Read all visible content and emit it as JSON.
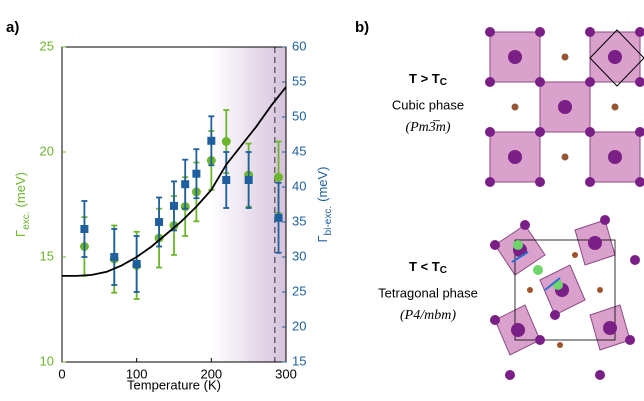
{
  "chart_data": {
    "type": "scatter",
    "panel_label": "a)",
    "xlabel": "Temperature (K)",
    "ylabel": [
      "Γ",
      "exc.",
      "(meV)"
    ],
    "y2label": [
      "Γ",
      "bi-exc.",
      "(meV)"
    ],
    "xlim": [
      0,
      300
    ],
    "xticks": [
      0,
      100,
      200,
      300
    ],
    "ylim": [
      10,
      25
    ],
    "yticks": [
      10,
      15,
      20,
      25
    ],
    "y2lim": [
      15,
      60
    ],
    "y2ticks": [
      15,
      20,
      25,
      30,
      35,
      40,
      45,
      50,
      55,
      60
    ],
    "vline": 285,
    "series": [
      {
        "marker": "circle",
        "color": "#6cb52d",
        "x": [
          30,
          70,
          100,
          130,
          150,
          165,
          180,
          200,
          220,
          250,
          290
        ],
        "values": [
          15.5,
          14.9,
          14.6,
          15.9,
          16.5,
          17.4,
          18.1,
          19.6,
          20.5,
          18.9,
          18.8
        ],
        "errors": [
          1.4,
          1.6,
          1.6,
          1.4,
          1.4,
          1.4,
          1.4,
          1.4,
          1.5,
          1.5,
          1.7
        ]
      },
      {
        "marker": "square",
        "color": "#1f5f9e",
        "axis": "y2",
        "x": [
          30,
          70,
          100,
          130,
          150,
          165,
          180,
          200,
          220,
          250,
          290
        ],
        "values": [
          34,
          30,
          29,
          35,
          37.3,
          40.4,
          41.9,
          46.6,
          41,
          41,
          35.6
        ],
        "errors": [
          4,
          4,
          4,
          3.5,
          3.5,
          3.5,
          3.5,
          3.5,
          4,
          4,
          5
        ]
      },
      {
        "marker": "line",
        "color": "#000000",
        "x": [
          0,
          20,
          40,
          60,
          80,
          100,
          120,
          140,
          160,
          180,
          200,
          220,
          240,
          260,
          280,
          300
        ],
        "values": [
          14.1,
          14.1,
          14.15,
          14.3,
          14.6,
          15.0,
          15.5,
          16.1,
          16.7,
          17.4,
          18.2,
          19.4,
          20.3,
          21.2,
          22.2,
          23.1
        ]
      }
    ]
  },
  "panel_b": {
    "label": "b)",
    "phases": [
      {
        "condition": [
          "T > T",
          "C"
        ],
        "name": "Cubic phase",
        "group": "(Pm3̅m)"
      },
      {
        "condition": [
          "T < T",
          "C"
        ],
        "name": "Tetragonal phase",
        "group": "(P4/mbm)"
      }
    ]
  }
}
